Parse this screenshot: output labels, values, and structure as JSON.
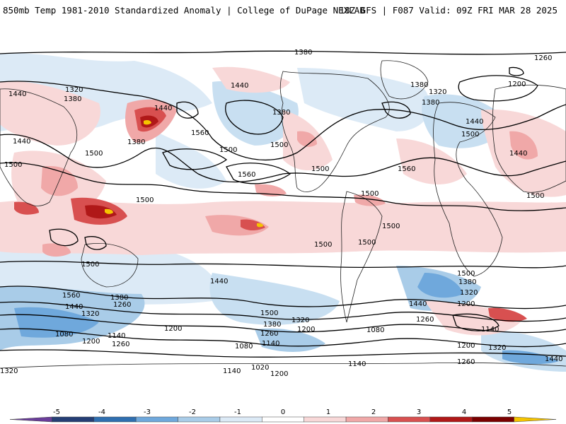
{
  "header": {
    "title_left": "850mb Temp 1981-2010 Standardized Anomaly | College of DuPage NEXLAB",
    "title_right": "18Z GFS | F087 Valid: 09Z FRI MAR 28 2025"
  },
  "map": {
    "contour_labels": [
      {
        "text": "1380"
      },
      {
        "text": "1260"
      },
      {
        "text": "1440"
      },
      {
        "text": "1320"
      },
      {
        "text": "1380"
      },
      {
        "text": "1440"
      },
      {
        "text": "1380"
      },
      {
        "text": "1320"
      },
      {
        "text": "1380"
      },
      {
        "text": "1200"
      },
      {
        "text": "1440"
      },
      {
        "text": "1380"
      },
      {
        "text": "1440"
      },
      {
        "text": "1560"
      },
      {
        "text": "1500"
      },
      {
        "text": "1500"
      },
      {
        "text": "1440"
      },
      {
        "text": "1500"
      },
      {
        "text": "1440"
      },
      {
        "text": "1500"
      },
      {
        "text": "1380"
      },
      {
        "text": "1560"
      },
      {
        "text": "1500"
      },
      {
        "text": "1560"
      },
      {
        "text": "1500"
      },
      {
        "text": "1500"
      },
      {
        "text": "1500"
      },
      {
        "text": "1500"
      },
      {
        "text": "1500"
      },
      {
        "text": "1500"
      },
      {
        "text": "1500"
      },
      {
        "text": "1440"
      },
      {
        "text": "1500"
      },
      {
        "text": "1500"
      },
      {
        "text": "1380"
      },
      {
        "text": "1320"
      },
      {
        "text": "1560"
      },
      {
        "text": "1380"
      },
      {
        "text": "1260"
      },
      {
        "text": "1440"
      },
      {
        "text": "1320"
      },
      {
        "text": "1200"
      },
      {
        "text": "1260"
      },
      {
        "text": "1140"
      },
      {
        "text": "1080"
      },
      {
        "text": "1140"
      },
      {
        "text": "1200"
      },
      {
        "text": "1260"
      },
      {
        "text": "1500"
      },
      {
        "text": "1440"
      },
      {
        "text": "1320"
      },
      {
        "text": "1200"
      },
      {
        "text": "1380"
      },
      {
        "text": "1260"
      },
      {
        "text": "1200"
      },
      {
        "text": "1080"
      },
      {
        "text": "1080"
      },
      {
        "text": "1140"
      },
      {
        "text": "1020"
      },
      {
        "text": "1140"
      },
      {
        "text": "1200"
      },
      {
        "text": "1140"
      },
      {
        "text": "1200"
      },
      {
        "text": "1320"
      },
      {
        "text": "1260"
      },
      {
        "text": "1320"
      },
      {
        "text": "1440"
      }
    ]
  },
  "colorbar": {
    "ticks": [
      "-5",
      "-4",
      "-3",
      "-2",
      "-1",
      "0",
      "1",
      "2",
      "3",
      "4",
      "5"
    ],
    "colors": [
      "#6a3d9a",
      "#253e75",
      "#2f6fb0",
      "#6fa8dc",
      "#a9cce8",
      "#dceaf6",
      "#ffffff",
      "#f8d8d8",
      "#f0a8a8",
      "#d85050",
      "#b01818",
      "#7a0000",
      "#f5c400"
    ]
  }
}
